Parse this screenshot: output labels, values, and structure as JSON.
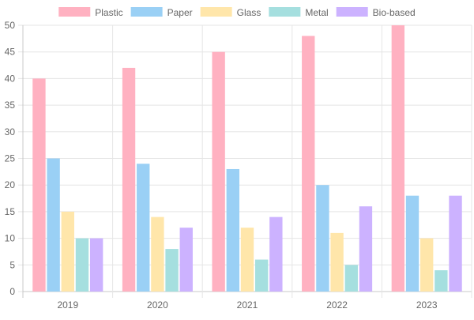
{
  "chart_data": {
    "type": "bar",
    "title": "",
    "xlabel": "",
    "ylabel": "",
    "categories": [
      "2019",
      "2020",
      "2021",
      "2022",
      "2023"
    ],
    "ylim": [
      0,
      50
    ],
    "yticks": [
      0,
      5,
      10,
      15,
      20,
      25,
      30,
      35,
      40,
      45,
      50
    ],
    "grid": true,
    "legend_position": "top",
    "series": [
      {
        "name": "Plastic",
        "values": [
          40,
          42,
          45,
          48,
          50
        ],
        "fill": "#ffb1c1",
        "stroke": "#ff6384"
      },
      {
        "name": "Paper",
        "values": [
          25,
          24,
          23,
          20,
          18
        ],
        "fill": "#9ad0f5",
        "stroke": "#36a2eb"
      },
      {
        "name": "Glass",
        "values": [
          15,
          14,
          12,
          11,
          10
        ],
        "fill": "#ffe6aa",
        "stroke": "#ffcd56"
      },
      {
        "name": "Metal",
        "values": [
          10,
          8,
          6,
          5,
          4
        ],
        "fill": "#a5dfdf",
        "stroke": "#4bc0c0"
      },
      {
        "name": "Bio-based",
        "values": [
          10,
          12,
          14,
          16,
          18
        ],
        "fill": "#ccb2ff",
        "stroke": "#9966ff"
      }
    ]
  }
}
